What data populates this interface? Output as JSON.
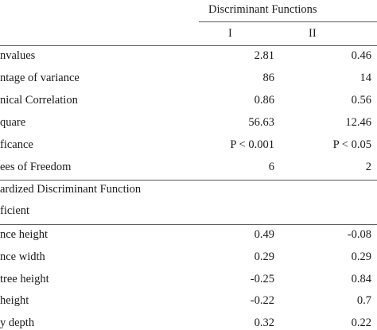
{
  "header": {
    "title": "Discriminant Functions",
    "columns": [
      "I",
      "II"
    ]
  },
  "table": {
    "rows": [
      [
        "nvalues",
        "2.81",
        "0.46"
      ],
      [
        "ntage of variance",
        "86",
        "14"
      ],
      [
        "nical Correlation",
        "0.86",
        "0.56"
      ],
      [
        "quare",
        "56.63",
        "12.46"
      ],
      [
        "ficance",
        "P < 0.001",
        "P < 0.05"
      ],
      [
        "ees of Freedom",
        "6",
        "2"
      ]
    ]
  },
  "section": {
    "lines": [
      "ardized Discriminant Function",
      "ficient"
    ]
  },
  "table2": {
    "rows": [
      [
        "nce height",
        "0.49",
        "-0.08"
      ],
      [
        "nce width",
        "0.29",
        "0.29"
      ],
      [
        "tree height",
        "-0.25",
        "0.84"
      ],
      [
        "height",
        "-0.22",
        "0.7"
      ],
      [
        "y depth",
        "0.32",
        "0.22"
      ]
    ]
  }
}
